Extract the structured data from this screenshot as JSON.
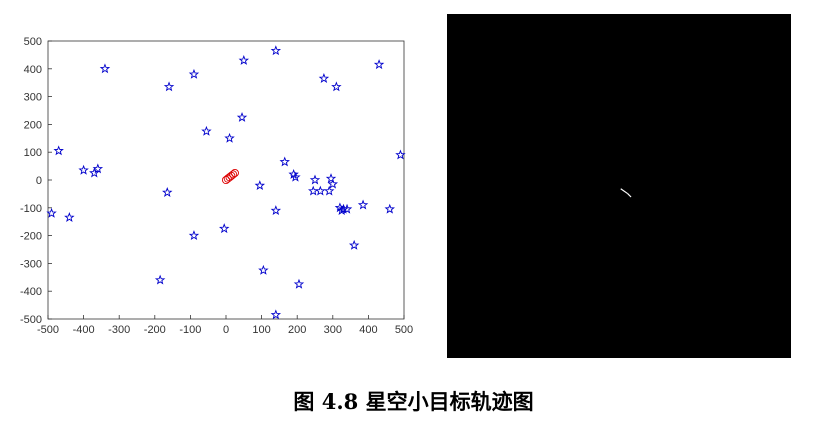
{
  "caption": "图 4.8 星空小目标轨迹图",
  "colors": {
    "stars": "#0000cc",
    "target": "#dd0000",
    "axis": "#333333",
    "panel_bg": "#000000",
    "trail": "#ffffff"
  },
  "chart_data": [
    {
      "type": "scatter",
      "title": "",
      "xlabel": "",
      "ylabel": "",
      "xlim": [
        -500,
        500
      ],
      "ylim": [
        -500,
        500
      ],
      "xticks": [
        "-500",
        "-400",
        "-300",
        "-200",
        "-100",
        "0",
        "100",
        "200",
        "300",
        "400",
        "500"
      ],
      "yticks": [
        "500",
        "400",
        "300",
        "200",
        "100",
        "0",
        "-100",
        "-200",
        "-300",
        "-400",
        "-500"
      ],
      "grid": false,
      "series": [
        {
          "marker": "pentagram",
          "x": [
            -490,
            -440,
            -470,
            -400,
            -370,
            -360,
            -340,
            -165,
            -160,
            -90,
            -55,
            -185,
            -90,
            -5,
            10,
            45,
            50,
            95,
            105,
            140,
            140,
            140,
            165,
            190,
            195,
            205,
            245,
            250,
            265,
            275,
            290,
            295,
            300,
            310,
            320,
            325,
            330,
            340,
            360,
            385,
            430,
            460,
            490
          ],
          "y": [
            -120,
            -135,
            105,
            35,
            25,
            40,
            400,
            -45,
            335,
            380,
            175,
            -360,
            -200,
            -175,
            150,
            225,
            430,
            -20,
            -325,
            465,
            -110,
            -485,
            65,
            20,
            10,
            -375,
            -40,
            0,
            -40,
            365,
            -40,
            5,
            -15,
            335,
            -100,
            -110,
            -105,
            -105,
            -235,
            -90,
            415,
            -105,
            90
          ]
        },
        {
          "marker": "circle",
          "x": [
            0,
            5,
            10,
            15,
            20,
            25
          ],
          "y": [
            0,
            5,
            10,
            15,
            20,
            25
          ]
        }
      ]
    },
    {
      "type": "image",
      "title": "",
      "trail": [
        [
          0.505,
          0.508
        ],
        [
          0.525,
          0.522
        ],
        [
          0.535,
          0.532
        ]
      ]
    }
  ]
}
